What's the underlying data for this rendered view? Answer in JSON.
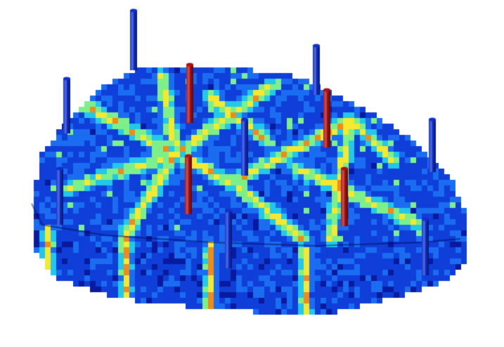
{
  "colormap": [
    "#0a1a9e",
    "#0f3fd8",
    "#1a6cf0",
    "#22c8e8",
    "#7ef08a",
    "#f4e830",
    "#f08a1a",
    "#c01010"
  ],
  "well_colors": {
    "injector": "#1030d0",
    "producer": "#b01010"
  },
  "wells": {
    "injectors": 8,
    "producers": 4
  }
}
